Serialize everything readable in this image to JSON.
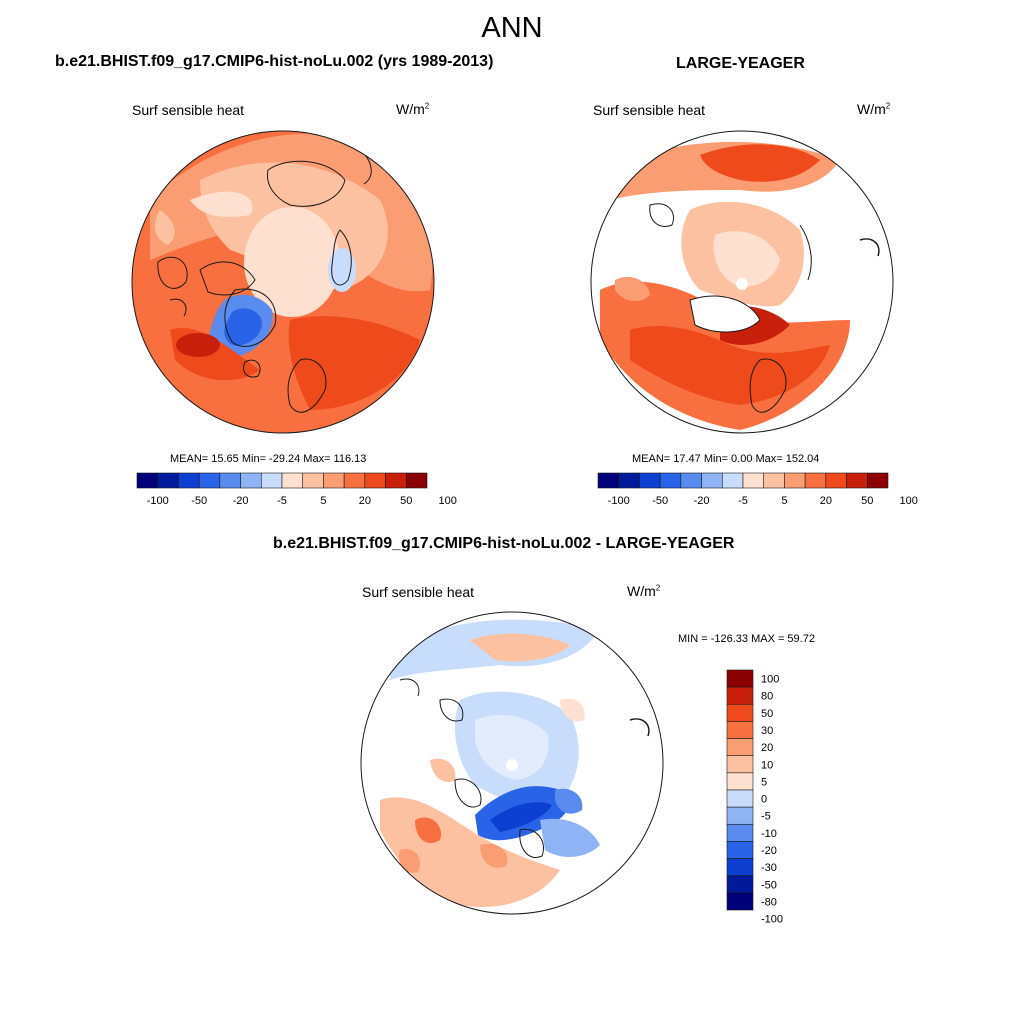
{
  "figure": {
    "title": "ANN"
  },
  "colors": {
    "land_edge": "#1a1a1a",
    "palette": [
      "#00007a",
      "#001a9c",
      "#0d3fd1",
      "#2863e8",
      "#5a8cf0",
      "#8fb4f5",
      "#c8dcfb",
      "#fde0cf",
      "#fcc1a0",
      "#fb9d72",
      "#f8703f",
      "#ee4a1c",
      "#c8200a",
      "#8b0000"
    ]
  },
  "panels": {
    "left": {
      "title": "b.e21.BHIST.f09_g17.CMIP6-hist-noLu.002 (yrs 1989-2013)",
      "variable": "Surf sensible heat",
      "units": "W/m",
      "units_sup": "2",
      "stats": "MEAN=  15.65  Min= -29.24  Max= 116.13"
    },
    "right": {
      "title": "LARGE-YEAGER",
      "variable": "Surf sensible heat",
      "units": "W/m",
      "units_sup": "2",
      "stats": "MEAN=  17.47  Min=    0.00  Max= 152.04"
    },
    "diff": {
      "title": "b.e21.BHIST.f09_g17.CMIP6-hist-noLu.002 - LARGE-YEAGER",
      "variable": "Surf sensible heat",
      "units": "W/m",
      "units_sup": "2",
      "stats": "MIN = -126.33 MAX =  59.72"
    }
  },
  "chart_data": [
    {
      "type": "heatmap",
      "title": "b.e21.BHIST.f09_g17.CMIP6-hist-noLu.002 (yrs 1989-2013)",
      "variable": "Surf sensible heat",
      "units": "W/m2",
      "projection": "north polar stereographic",
      "mean": 15.65,
      "min": -29.24,
      "max": 116.13,
      "colorbar_levels": [
        -100,
        -80,
        -50,
        -30,
        -20,
        -10,
        -5,
        0,
        5,
        10,
        20,
        30,
        50,
        80,
        100
      ],
      "colorbar_tick_labels": [
        "-100",
        "-50",
        "-20",
        "-5",
        "5",
        "20",
        "50",
        "100"
      ]
    },
    {
      "type": "heatmap",
      "title": "LARGE-YEAGER",
      "variable": "Surf sensible heat",
      "units": "W/m2",
      "projection": "north polar stereographic",
      "mean": 17.47,
      "min": 0.0,
      "max": 152.04,
      "colorbar_levels": [
        -100,
        -80,
        -50,
        -30,
        -20,
        -10,
        -5,
        0,
        5,
        10,
        20,
        30,
        50,
        80,
        100
      ],
      "colorbar_tick_labels": [
        "-100",
        "-50",
        "-20",
        "-5",
        "5",
        "20",
        "50",
        "100"
      ]
    },
    {
      "type": "heatmap",
      "title": "b.e21.BHIST.f09_g17.CMIP6-hist-noLu.002 - LARGE-YEAGER",
      "variable": "Surf sensible heat",
      "units": "W/m2",
      "projection": "north polar stereographic",
      "min": -126.33,
      "max": 59.72,
      "colorbar_tick_labels": [
        "100",
        "80",
        "50",
        "30",
        "20",
        "10",
        "5",
        "0",
        "-5",
        "-10",
        "-20",
        "-30",
        "-50",
        "-80",
        "-100"
      ]
    }
  ]
}
